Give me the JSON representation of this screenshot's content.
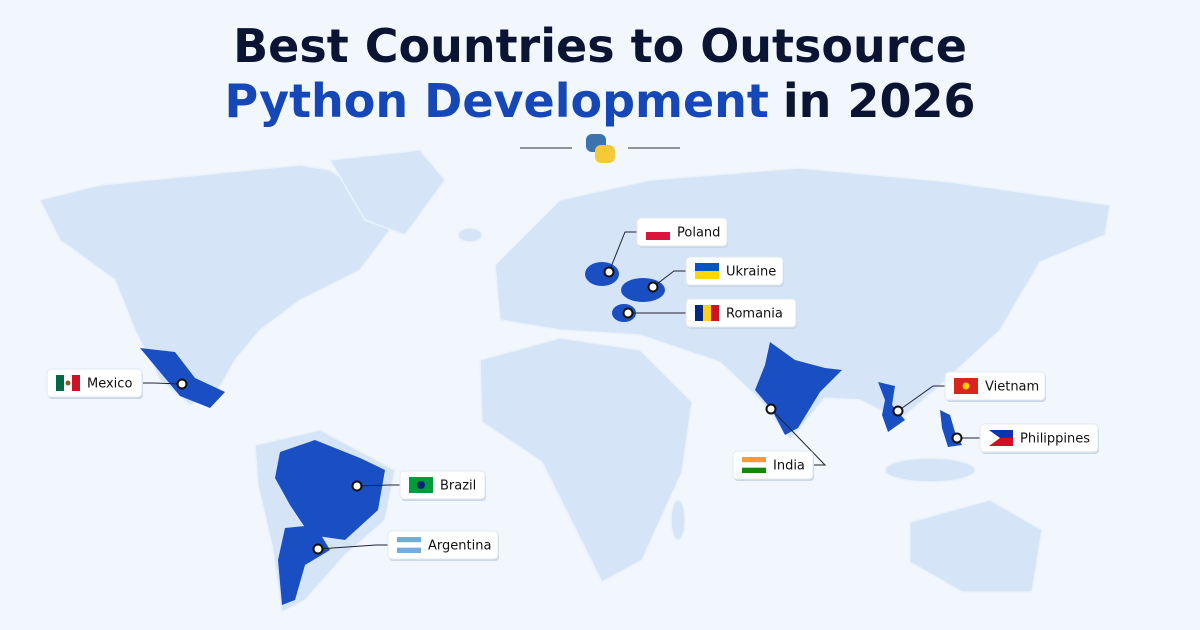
{
  "title": {
    "line1": "Best Countries to Outsource",
    "line2_highlight": "Python Development",
    "line2_rest": "in 2026"
  },
  "countries": [
    "Poland",
    "Ukraine",
    "Romania",
    "Mexico",
    "India",
    "Vietnam",
    "Philippines",
    "Brazil",
    "Argentina"
  ]
}
